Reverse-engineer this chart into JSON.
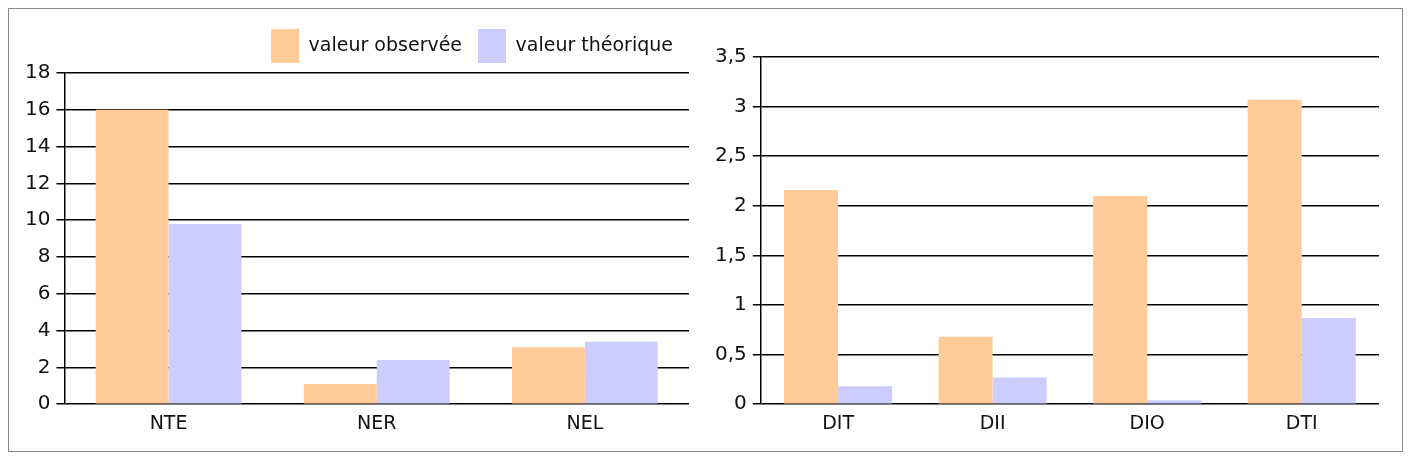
{
  "chart_data": [
    {
      "type": "bar",
      "categories": [
        "NTE",
        "NER",
        "NEL"
      ],
      "series": [
        {
          "name": "valeur observée",
          "color": "#ffcc99",
          "values": [
            16,
            1.1,
            3.1
          ]
        },
        {
          "name": "valeur théorique",
          "color": "#ccccff",
          "values": [
            9.8,
            2.4,
            3.4
          ]
        }
      ],
      "ylim": [
        0,
        18
      ],
      "yticks": [
        0,
        2,
        4,
        6,
        8,
        10,
        12,
        14,
        16,
        18
      ],
      "grid": "y",
      "legend": "top right"
    },
    {
      "type": "bar",
      "categories": [
        "DIT",
        "DII",
        "DIO",
        "DTI"
      ],
      "series": [
        {
          "color": "#ffcc99",
          "values": [
            2.16,
            0.68,
            2.1,
            3.07
          ]
        },
        {
          "color": "#ccccff",
          "values": [
            0.18,
            0.27,
            0.04,
            0.87
          ]
        }
      ],
      "ylim": [
        0,
        3.5
      ],
      "yticks": [
        0,
        {
          "value": 0.5,
          "label": "0,5"
        },
        1,
        {
          "value": 1.5,
          "label": "1,5"
        },
        2,
        {
          "value": 2.5,
          "label": "2,5"
        },
        3,
        {
          "value": 3.5,
          "label": "3,5"
        }
      ],
      "grid": "y"
    }
  ]
}
